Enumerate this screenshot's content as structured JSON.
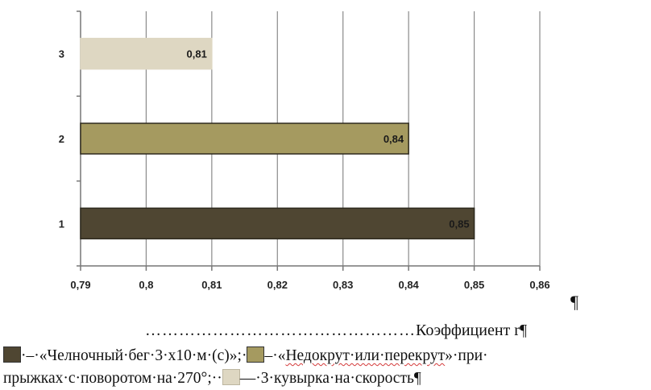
{
  "chart_data": {
    "type": "bar",
    "orientation": "horizontal",
    "categories": [
      "1",
      "2",
      "3"
    ],
    "values": [
      0.85,
      0.84,
      0.81
    ],
    "value_labels": [
      "0,85",
      "0,84",
      "0,81"
    ],
    "colors": [
      "#4f4632",
      "#a59a60",
      "#ded7c2"
    ],
    "xlim": [
      0.79,
      0.86
    ],
    "x_ticks": [
      0.79,
      0.8,
      0.81,
      0.82,
      0.83,
      0.84,
      0.85,
      0.86
    ],
    "x_tick_labels": [
      "0,79",
      "0,8",
      "0,81",
      "0,82",
      "0,83",
      "0,84",
      "0,85",
      "0,86"
    ],
    "grid": "vertical",
    "legend": "below"
  },
  "caption": {
    "dots": "…………………………………………",
    "title": "Коэффициент r",
    "pilcrow": "¶",
    "right_pilcrow": "¶"
  },
  "legend": {
    "items": [
      {
        "color": "#4f4632",
        "prefix": "·–·",
        "text": "«Челночный·бег·3·х10·м·(с)»;·"
      },
      {
        "color": "#a59a60",
        "prefix": "–·«",
        "text_underlined": "Недокрут·или·перекрут",
        "text": "»·при·"
      },
      {
        "color": "#ded7c2",
        "prefix": "—·",
        "text": "3·кувырка·на·скорость"
      }
    ],
    "line2_start": "прыжках·с·поворотом·на·270°;··",
    "end_pilcrow": "¶"
  }
}
